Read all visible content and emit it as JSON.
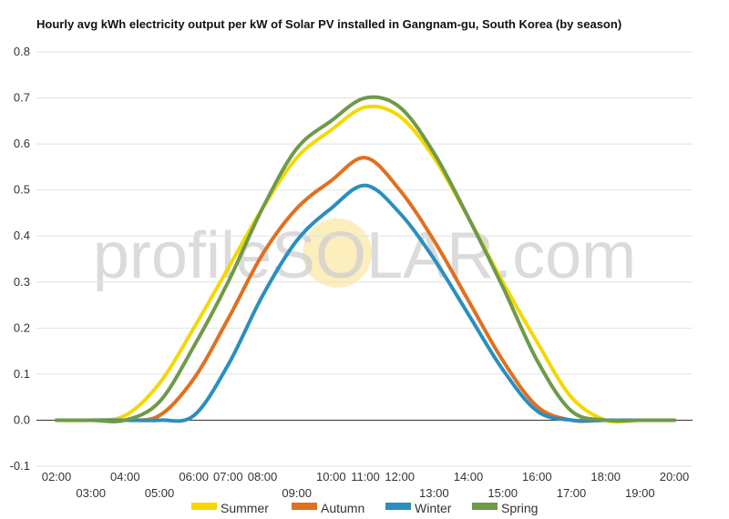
{
  "chart_data": {
    "type": "line",
    "title": "Hourly avg kWh electricity output per kW of Solar PV installed in Gangnam-gu, South Korea (by season)",
    "xlabel": "",
    "ylabel": "",
    "ylim": [
      -0.1,
      0.8
    ],
    "yticks": [
      "0.8",
      "0.7",
      "0.6",
      "0.5",
      "0.4",
      "0.3",
      "0.2",
      "0.1",
      "0.0",
      "-0.1"
    ],
    "xticks_upper": [
      "02:00",
      "04:00",
      "06:00",
      "07:00",
      "08:00",
      "10:00",
      "11:00",
      "12:00",
      "14:00",
      "16:00",
      "18:00",
      "20:00"
    ],
    "xticks_lower": [
      "03:00",
      "05:00",
      "09:00",
      "13:00",
      "15:00",
      "17:00",
      "19:00"
    ],
    "x": [
      "02:00",
      "03:00",
      "04:00",
      "05:00",
      "06:00",
      "07:00",
      "08:00",
      "09:00",
      "10:00",
      "11:00",
      "12:00",
      "13:00",
      "14:00",
      "15:00",
      "16:00",
      "17:00",
      "18:00",
      "19:00",
      "20:00"
    ],
    "series": [
      {
        "name": "Summer",
        "color": "#f5d800",
        "values": [
          0,
          0,
          0.01,
          0.08,
          0.2,
          0.33,
          0.46,
          0.57,
          0.63,
          0.68,
          0.66,
          0.57,
          0.44,
          0.3,
          0.17,
          0.05,
          0,
          0,
          0
        ]
      },
      {
        "name": "Autumn",
        "color": "#e07020",
        "values": [
          0,
          0,
          0,
          0.01,
          0.09,
          0.22,
          0.36,
          0.46,
          0.52,
          0.57,
          0.5,
          0.39,
          0.26,
          0.13,
          0.03,
          0,
          0,
          0,
          0
        ]
      },
      {
        "name": "Winter",
        "color": "#2a8fbf",
        "values": [
          0,
          0,
          0,
          0,
          0.01,
          0.12,
          0.27,
          0.39,
          0.46,
          0.51,
          0.45,
          0.35,
          0.23,
          0.11,
          0.02,
          0,
          0,
          0,
          0
        ]
      },
      {
        "name": "Spring",
        "color": "#6e9a4a",
        "values": [
          0,
          0,
          0,
          0.04,
          0.16,
          0.3,
          0.46,
          0.59,
          0.65,
          0.7,
          0.68,
          0.58,
          0.44,
          0.29,
          0.13,
          0.02,
          0,
          0,
          0
        ]
      }
    ],
    "grid": true,
    "legend_position": "bottom",
    "watermark": "profileSOLAR.com"
  }
}
